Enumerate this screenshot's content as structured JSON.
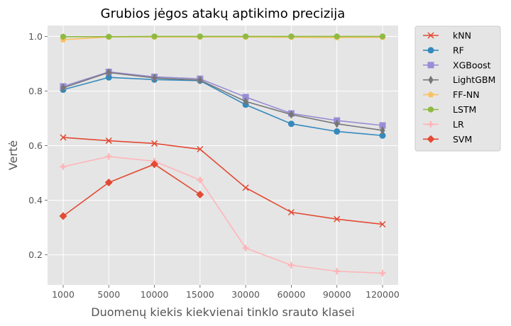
{
  "chart_data": {
    "type": "line",
    "title": "Grubios jėgos atakų aptikimo precizija",
    "xlabel": "Duomenų kiekis kiekvienai tinklo srauto klasei",
    "ylabel": "Vertė",
    "categories": [
      "1000",
      "5000",
      "10000",
      "15000",
      "30000",
      "60000",
      "90000",
      "120000"
    ],
    "ylim": [
      0.09,
      1.04
    ],
    "yticks": [
      0.2,
      0.4,
      0.6,
      0.8,
      1.0
    ],
    "ytick_labels": [
      "0.2",
      "0.4",
      "0.6",
      "0.8",
      "1.0"
    ],
    "grid": true,
    "legend_position": "outside right",
    "series": [
      {
        "name": "kNN",
        "color": "#E24A33",
        "marker": "x",
        "values": [
          0.63,
          0.618,
          0.608,
          0.587,
          0.446,
          0.356,
          0.331,
          0.312
        ]
      },
      {
        "name": "RF",
        "color": "#348ABD",
        "marker": "circle",
        "values": [
          0.805,
          0.85,
          0.842,
          0.838,
          0.75,
          0.68,
          0.652,
          0.637
        ]
      },
      {
        "name": "XGBoost",
        "color": "#988ED5",
        "marker": "square",
        "values": [
          0.817,
          0.87,
          0.852,
          0.845,
          0.778,
          0.718,
          0.692,
          0.674
        ]
      },
      {
        "name": "LightGBM",
        "color": "#777777",
        "marker": "thin_diamond",
        "values": [
          0.812,
          0.868,
          0.848,
          0.84,
          0.762,
          0.714,
          0.68,
          0.656
        ]
      },
      {
        "name": "FF-NN",
        "color": "#FBC15E",
        "marker": "pentagon",
        "values": [
          0.988,
          0.998,
          0.998,
          0.998,
          0.998,
          0.997,
          0.996,
          0.997
        ]
      },
      {
        "name": "LSTM",
        "color": "#8EBA42",
        "marker": "hexagon",
        "values": [
          0.999,
          0.999,
          1.0,
          1.0,
          1.0,
          1.0,
          1.0,
          1.0
        ]
      },
      {
        "name": "LR",
        "color": "#FFB5B8",
        "marker": "plus",
        "values": [
          0.523,
          0.56,
          0.543,
          0.474,
          0.225,
          0.162,
          0.14,
          0.133
        ]
      },
      {
        "name": "SVM",
        "color": "#E24A33",
        "marker": "diamond",
        "values": [
          0.342,
          0.465,
          0.532,
          0.421,
          null,
          null,
          null,
          null
        ]
      }
    ]
  }
}
